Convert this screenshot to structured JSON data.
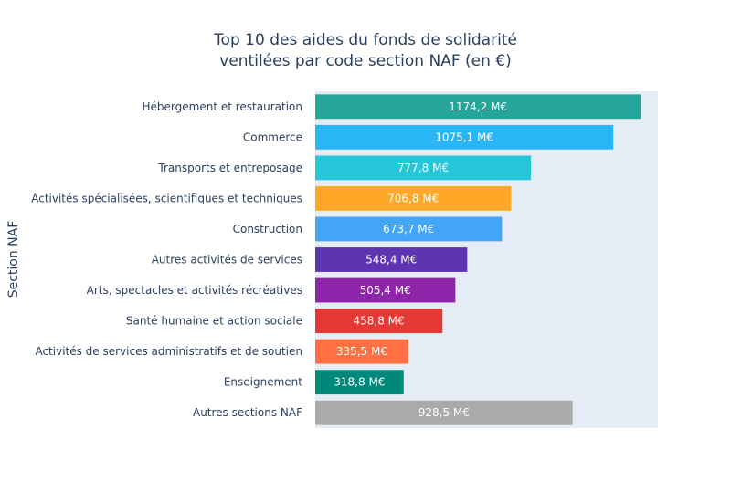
{
  "chart_data": {
    "type": "bar",
    "orientation": "horizontal",
    "title_lines": [
      "Top 10 des aides du fonds de solidarité",
      "ventilées par code section NAF (en €)"
    ],
    "ylabel": "Section NAF",
    "xlabel": "",
    "categories": [
      "Hébergement et restauration",
      "Commerce",
      "Transports et entreposage",
      "Activités spécialisées, scientifiques et techniques",
      "Construction",
      "Autres activités de services",
      "Arts, spectacles et activités récréatives",
      "Santé humaine et action sociale",
      "Activités de services administratifs et de soutien",
      "Enseignement",
      "Autres sections NAF"
    ],
    "values": [
      1174.2,
      1075.1,
      777.8,
      706.8,
      673.7,
      548.4,
      505.4,
      458.8,
      335.5,
      318.8,
      928.5
    ],
    "value_labels": [
      "1174,2 M€",
      "1075,1 M€",
      "777,8 M€",
      "706,8 M€",
      "673,7 M€",
      "548,4 M€",
      "505,4 M€",
      "458,8 M€",
      "335,5 M€",
      "318,8 M€",
      "928,5 M€"
    ],
    "colors": [
      "#26a69a",
      "#29b6f6",
      "#26c6da",
      "#ffa726",
      "#42a5f5",
      "#5e35b1",
      "#8e24aa",
      "#e53935",
      "#ff7043",
      "#00897b",
      "#aaaaaa"
    ],
    "xlim": [
      0,
      1236
    ],
    "grid": false,
    "legend": "none",
    "plot_background": "#e5ecf6"
  }
}
